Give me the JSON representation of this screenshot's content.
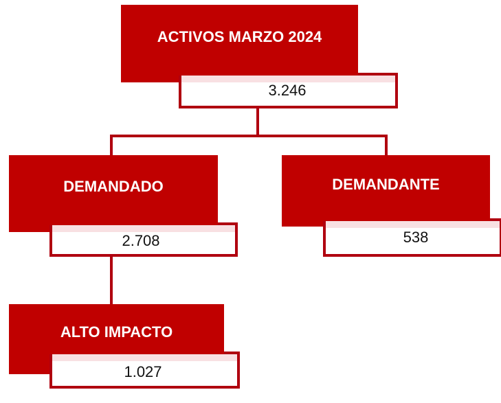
{
  "nodes": [
    {
      "label": "ACTIVOS MARZO 2024",
      "value": "3.246"
    },
    {
      "label": "DEMANDADO",
      "value": "2.708"
    },
    {
      "label": "DEMANDANTE",
      "value": "538"
    },
    {
      "label": "ALTO IMPACTO",
      "value": "1.027"
    }
  ]
}
